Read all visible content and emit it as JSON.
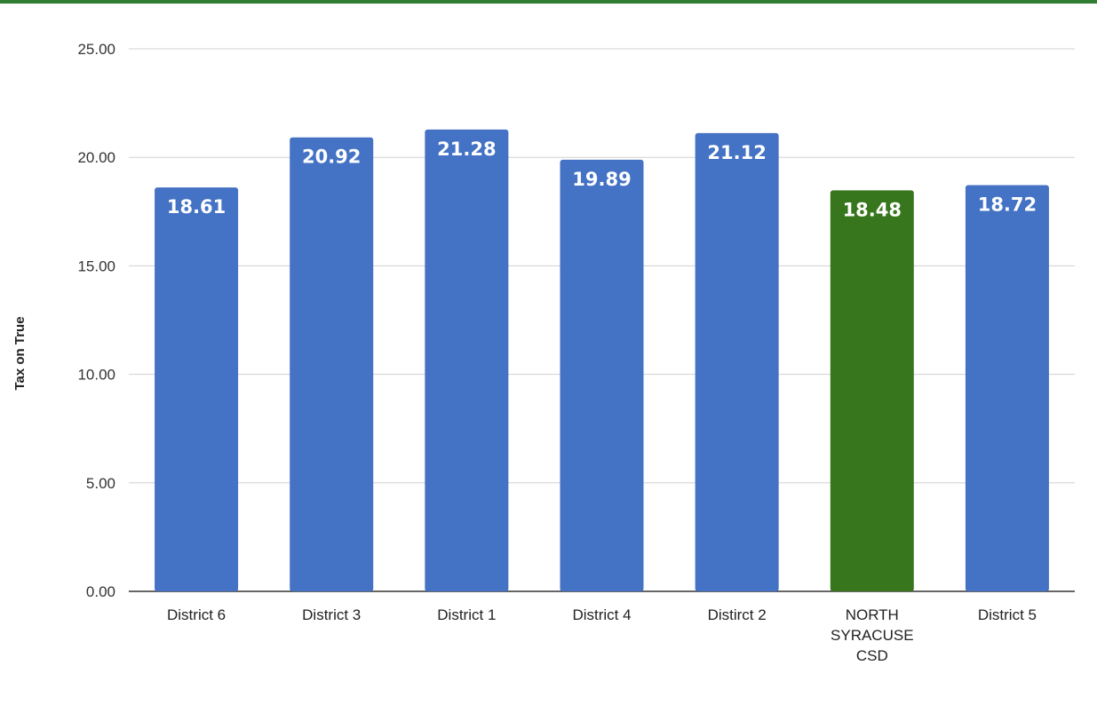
{
  "chart_data": {
    "type": "bar",
    "title": "",
    "xlabel": "",
    "ylabel": "Tax on True",
    "ylim": [
      0,
      25
    ],
    "yticks": [
      "0.00",
      "5.00",
      "10.00",
      "15.00",
      "20.00",
      "25.00"
    ],
    "grid": true,
    "categories": [
      "District 6",
      "District 3",
      "District 1",
      "District 4",
      "Distirct 2",
      "NORTH SYRACUSE CSD",
      "District 5"
    ],
    "values": [
      18.61,
      20.92,
      21.28,
      19.89,
      21.12,
      18.48,
      18.72
    ],
    "value_labels": [
      "18.61",
      "20.92",
      "21.28",
      "19.89",
      "21.12",
      "18.48",
      "18.72"
    ],
    "bar_colors": [
      "#4472c4",
      "#4472c4",
      "#4472c4",
      "#4472c4",
      "#4472c4",
      "#38761d",
      "#4472c4"
    ],
    "highlight_color": "#38761d",
    "default_color": "#4472c4"
  }
}
